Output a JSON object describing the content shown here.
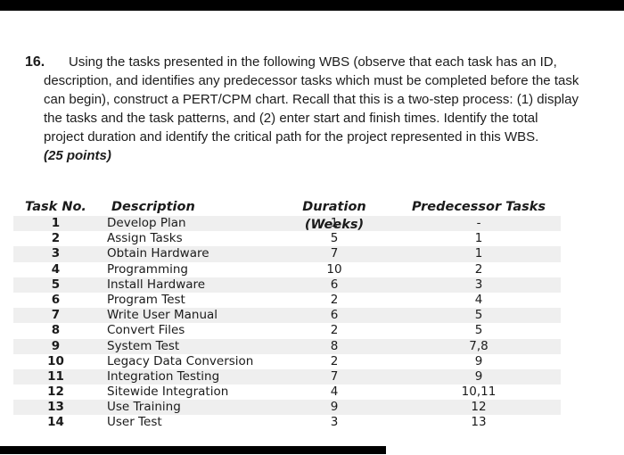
{
  "page": {
    "background": "#ffffff",
    "text_color": "#1c1c1c"
  },
  "decorations": {
    "top_bar_color": "#000000",
    "bottom_bar_color": "#000000"
  },
  "question": {
    "number": "16.",
    "lines": [
      "Using the tasks presented in the following WBS (observe that each task has an ID,",
      "description, and identifies any predecessor tasks which must be completed before the task",
      "can begin), construct a PERT/CPM chart. Recall that this is a two-step process: (1) display",
      "the tasks and the task patterns, and (2) enter start and finish times. Identify the total",
      "project duration and identify the critical path for the project represented in this WBS."
    ],
    "points": "(25 points)"
  },
  "table": {
    "stripe_color": "#efefef",
    "headers": [
      "Task No.",
      "Description",
      "Duration (Weeks)",
      "Predecessor Tasks"
    ],
    "rows": [
      [
        "1",
        "Develop Plan",
        "1",
        "-"
      ],
      [
        "2",
        "Assign Tasks",
        "5",
        "1"
      ],
      [
        "3",
        "Obtain Hardware",
        "7",
        "1"
      ],
      [
        "4",
        "Programming",
        "10",
        "2"
      ],
      [
        "5",
        "Install Hardware",
        "6",
        "3"
      ],
      [
        "6",
        "Program Test",
        "2",
        "4"
      ],
      [
        "7",
        "Write User Manual",
        "6",
        "5"
      ],
      [
        "8",
        "Convert Files",
        "2",
        "5"
      ],
      [
        "9",
        "System Test",
        "8",
        "7,8"
      ],
      [
        "10",
        "Legacy Data Conversion",
        "2",
        "9"
      ],
      [
        "11",
        "Integration Testing",
        "7",
        "9"
      ],
      [
        "12",
        "Sitewide Integration",
        "4",
        "10,11"
      ],
      [
        "13",
        "Use Training",
        "9",
        "12"
      ],
      [
        "14",
        "User Test",
        "3",
        "13"
      ]
    ]
  }
}
